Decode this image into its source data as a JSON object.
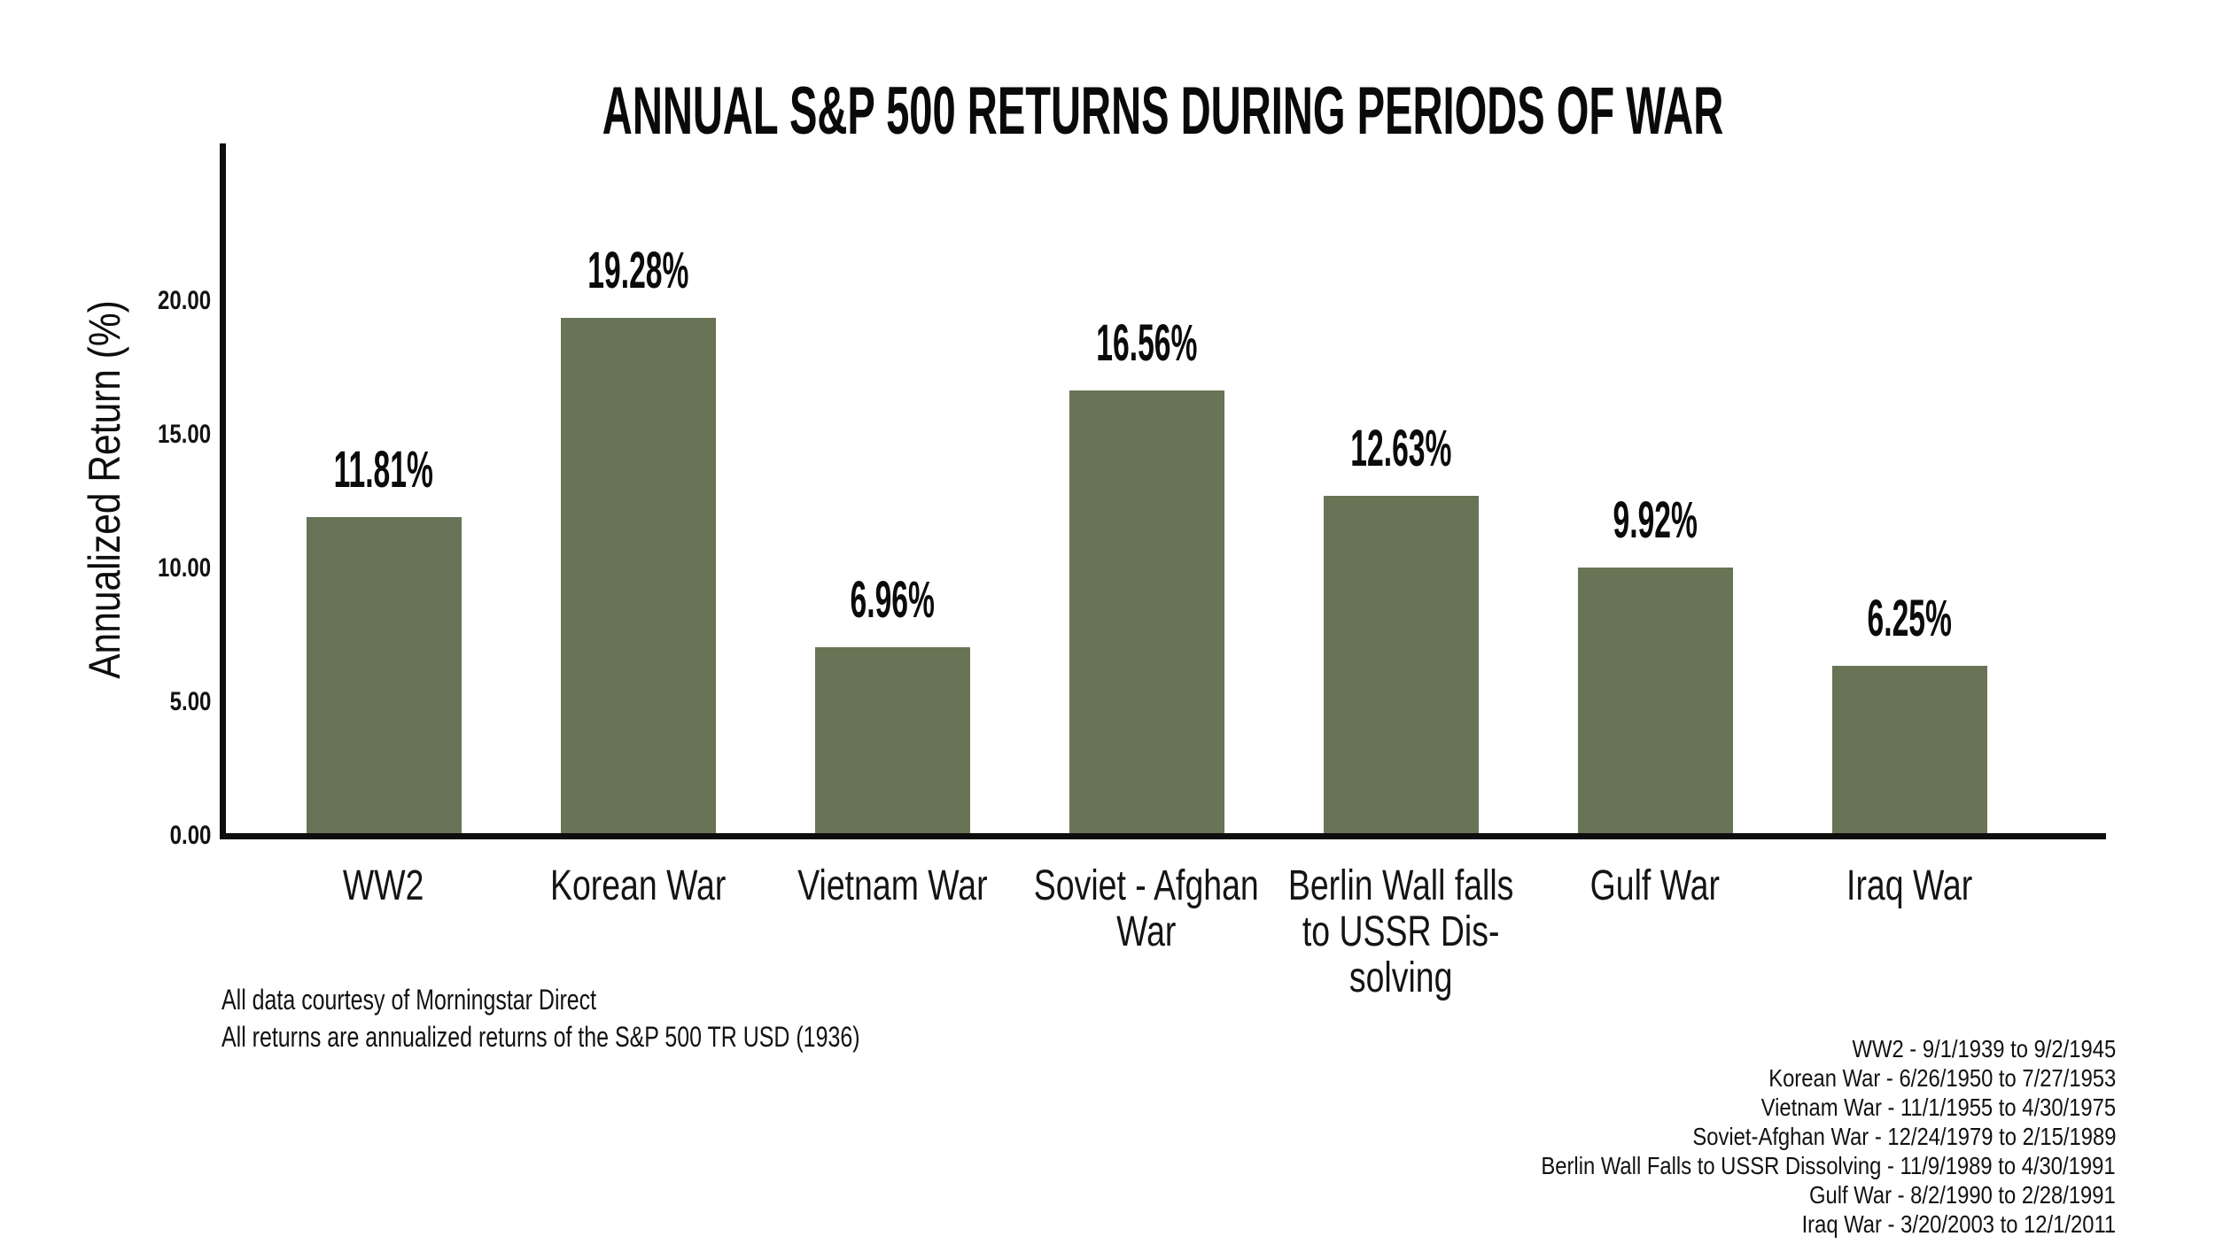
{
  "chart_data": {
    "type": "bar",
    "title": "ANNUAL S&P 500 RETURNS DURING PERIODS OF WAR",
    "xlabel": "",
    "ylabel": "Annualized Return (%)",
    "categories": [
      "WW2",
      "Korean War",
      "Vietnam War",
      "Soviet - Afghan\nWar",
      "Berlin Wall falls\nto USSR Dis-\nsolving",
      "Gulf War",
      "Iraq War"
    ],
    "values": [
      11.81,
      19.28,
      6.96,
      16.56,
      12.63,
      9.92,
      6.25
    ],
    "value_labels": [
      "11.81%",
      "19.28%",
      "6.96%",
      "16.56%",
      "12.63%",
      "9.92%",
      "6.25%"
    ],
    "y_ticks": [
      {
        "value": 0,
        "label": "0.00"
      },
      {
        "value": 5,
        "label": "5.00"
      },
      {
        "value": 10,
        "label": "10.00"
      },
      {
        "value": 15,
        "label": "15.00"
      },
      {
        "value": 20,
        "label": "20.00"
      }
    ],
    "ylim": [
      0,
      25.8
    ],
    "grid": false,
    "legend": null,
    "bar_color": "#687455",
    "axis_color": "#0e0e0e",
    "text_color": "#121212"
  },
  "notes": [
    "All data courtesy of Morningstar Direct",
    "All returns are annualized returns of the S&P 500 TR USD (1936)"
  ],
  "war_periods": [
    "WW2 - 9/1/1939 to 9/2/1945",
    "Korean War - 6/26/1950 to 7/27/1953",
    "Vietnam War - 11/1/1955 to 4/30/1975",
    "Soviet-Afghan War - 12/24/1979 to 2/15/1989",
    "Berlin Wall Falls to USSR Dissolving - 11/9/1989 to 4/30/1991",
    "Gulf War - 8/2/1990 to 2/28/1991",
    "Iraq War - 3/20/2003 to 12/1/2011"
  ]
}
